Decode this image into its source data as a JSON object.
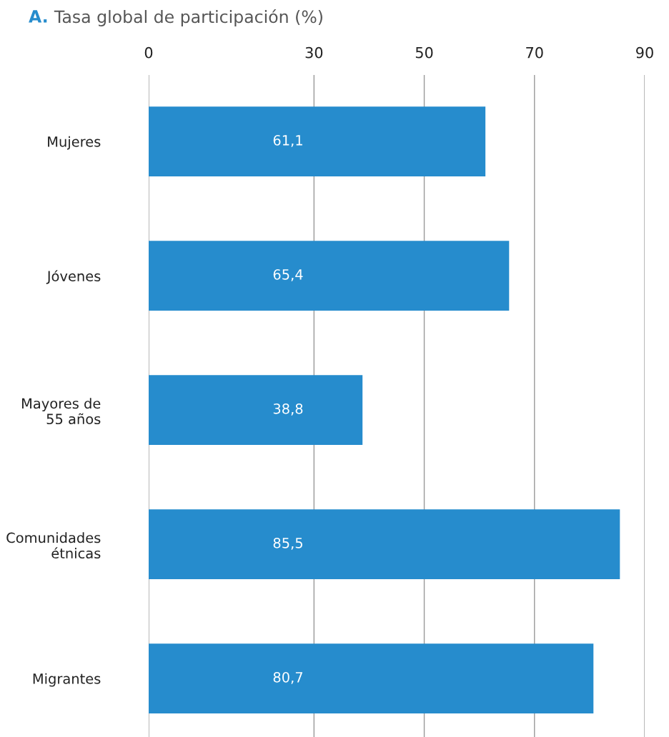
{
  "chart_data": {
    "type": "bar",
    "orientation": "horizontal",
    "title": "A. Tasa global de participación (%)",
    "categories": [
      "Mujeres",
      "Jóvenes",
      "Mayores de\n55 años",
      "Comunidades\nétnicas",
      "Migrantes"
    ],
    "values": [
      61.1,
      65.4,
      38.8,
      85.5,
      80.7
    ],
    "value_labels": [
      "61,1",
      "65,4",
      "38,8",
      "85,5",
      "80,7"
    ],
    "color": "#268ccd",
    "xlim": [
      0,
      90
    ],
    "xticks": [
      0,
      30,
      50,
      70,
      90
    ],
    "grid": "x",
    "legend": false
  }
}
